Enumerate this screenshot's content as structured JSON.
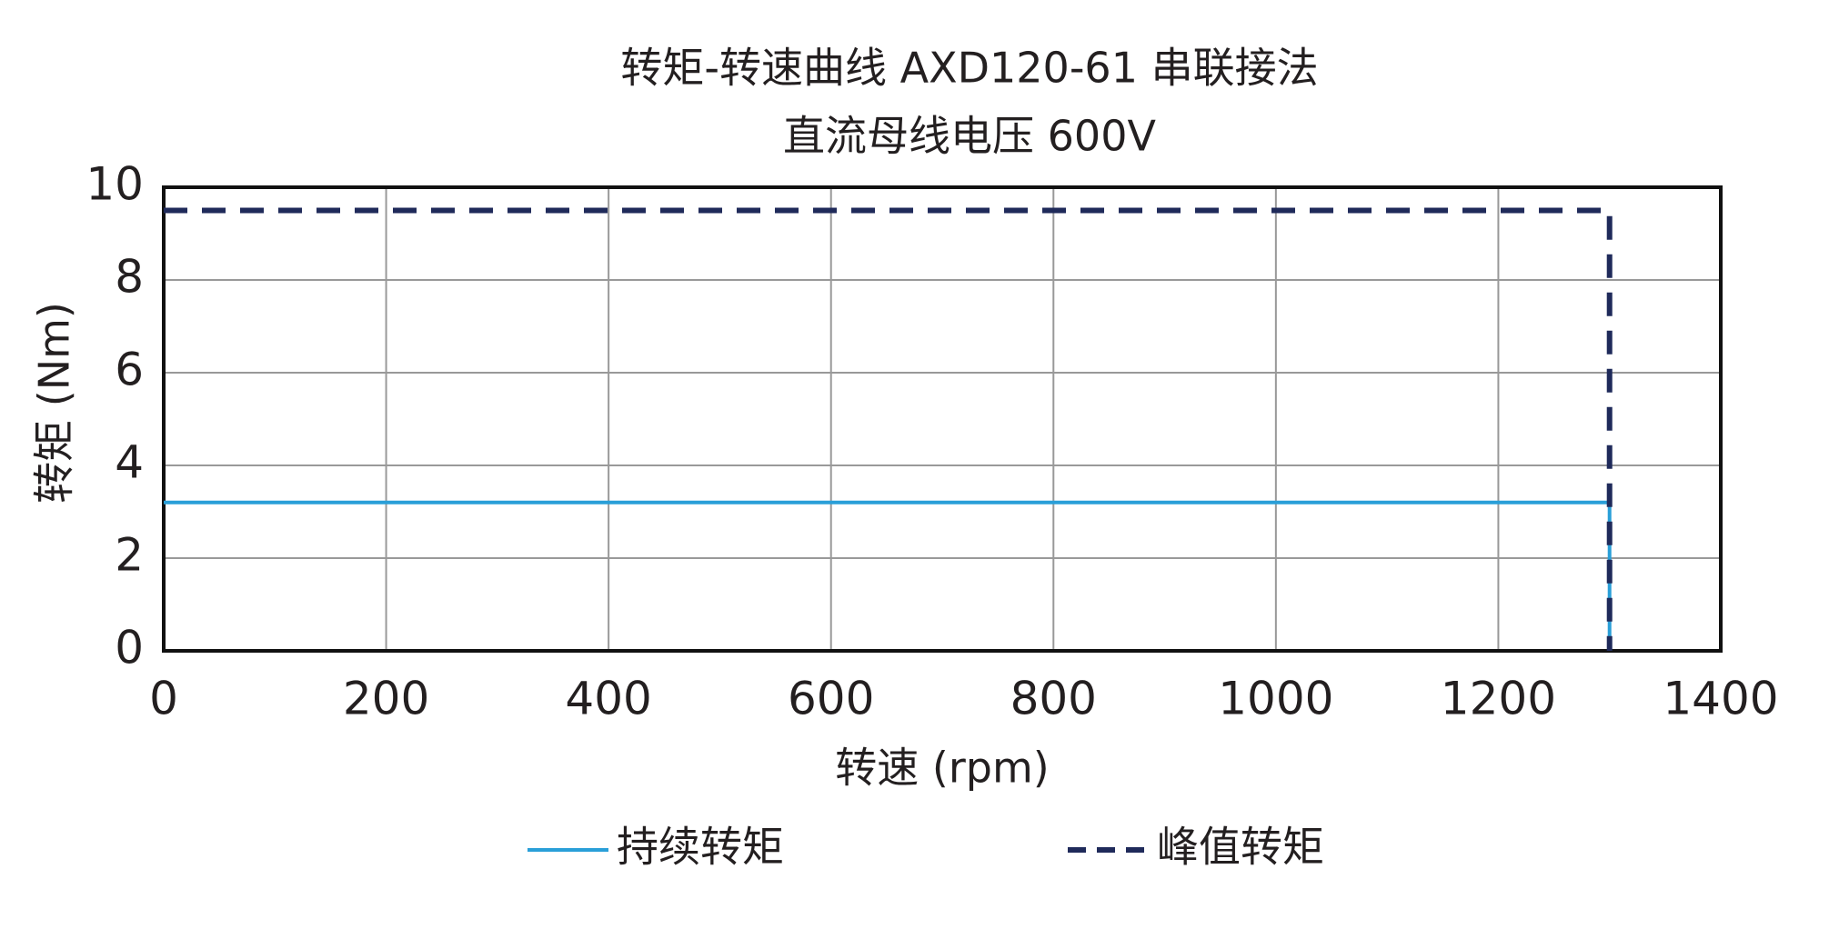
{
  "chart_data": {
    "type": "line",
    "title": "转矩-转速曲线 AXD120-61 串联接法",
    "subtitle": "直流母线电压 600V",
    "x_label": "转速 (rpm)",
    "y_label": "转矩 (Nm)",
    "xlim": [
      0,
      1400
    ],
    "xticks": [
      0,
      200,
      400,
      600,
      800,
      1000,
      1200,
      1400
    ],
    "ylim": [
      0,
      10
    ],
    "yticks": [
      0,
      2,
      4,
      6,
      8,
      10
    ],
    "grid": true,
    "legend": "bottom",
    "series": [
      {
        "name": "持续转矩",
        "color": "#2a9fd8",
        "style": "solid",
        "x": [
          0,
          1300,
          1300
        ],
        "values": [
          3.2,
          3.2,
          0
        ]
      },
      {
        "name": "峰值转矩",
        "color": "#1f2a5a",
        "style": "dashed",
        "x": [
          0,
          1300,
          1300
        ],
        "values": [
          9.5,
          9.5,
          0
        ]
      }
    ]
  }
}
